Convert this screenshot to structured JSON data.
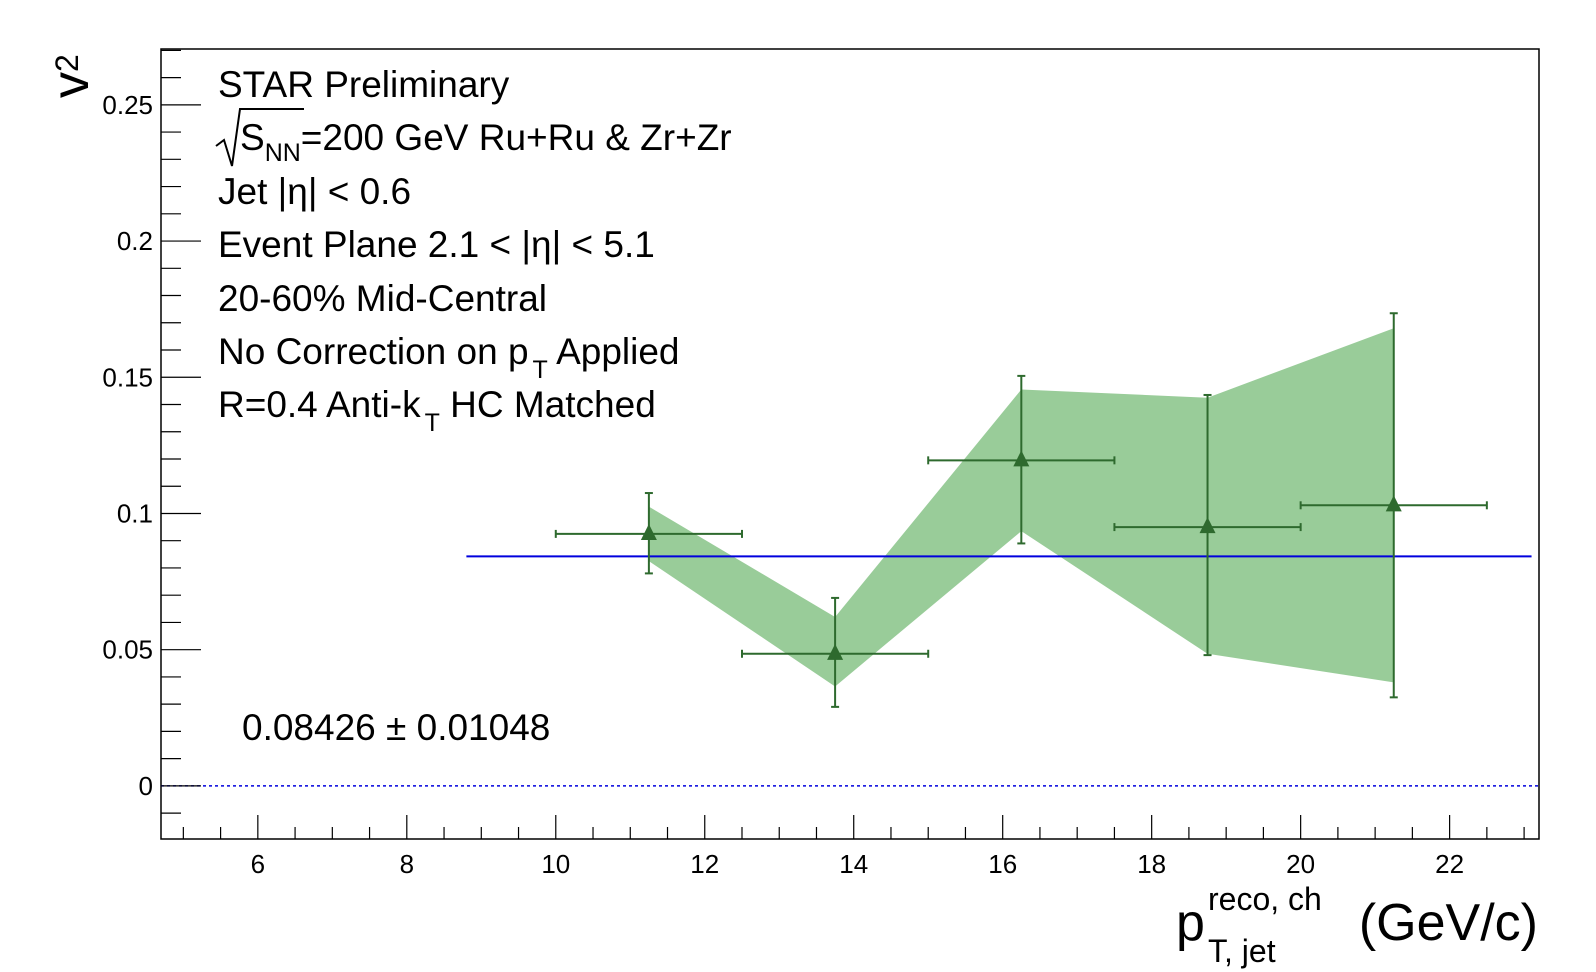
{
  "chart_data": {
    "type": "scatter",
    "xlabel": {
      "main": "p",
      "superscript": "reco, ch",
      "subscript": "T, jet",
      "unit": "(GeV/c)"
    },
    "ylabel": {
      "main": "v",
      "subscript": "2"
    },
    "xlim": [
      4.7,
      23.2
    ],
    "ylim": [
      -0.0195,
      0.2705
    ],
    "xticks": [
      6,
      8,
      10,
      12,
      14,
      16,
      18,
      20,
      22
    ],
    "xtick_labels": [
      "6",
      "8",
      "10",
      "12",
      "14",
      "16",
      "18",
      "20",
      "22"
    ],
    "xminor_step": 0.5,
    "yticks": [
      0,
      0.05,
      0.1,
      0.15,
      0.2,
      0.25
    ],
    "ytick_labels": [
      "0",
      "0.05",
      "0.1",
      "0.15",
      "0.2",
      "0.25"
    ],
    "yminor_step": 0.01,
    "grid": false,
    "legend": "none",
    "annotations": {
      "experiment": "STAR Preliminary",
      "energy_main": "S",
      "energy_sub": "NN",
      "energy_rest": "=200 GeV Ru+Ru & Zr+Zr",
      "jet_eta": "Jet |η| < 0.6",
      "event_plane": "Event Plane 2.1 < |η| < 5.1",
      "centrality": "20-60% Mid-Central",
      "correction_a": "No Correction on p",
      "correction_sub": "T",
      "correction_b": " Applied",
      "jet_def_a": "R=0.4 Anti-k",
      "jet_def_sub": "T",
      "jet_def_b": " HC Matched",
      "fit_result": "0.08426 ± 0.01048"
    },
    "series": [
      {
        "type": "points",
        "marker": "triangle",
        "color": "#2e6a2e",
        "points": [
          {
            "x": 11.25,
            "xerr": 1.25,
            "y": 0.0925,
            "yerr_low": 0.0145,
            "yerr_high": 0.015
          },
          {
            "x": 13.75,
            "xerr": 1.25,
            "y": 0.0485,
            "yerr_low": 0.0195,
            "yerr_high": 0.0205
          },
          {
            "x": 16.25,
            "xerr": 1.25,
            "y": 0.1195,
            "yerr_low": 0.0305,
            "yerr_high": 0.031
          },
          {
            "x": 18.75,
            "xerr": 1.25,
            "y": 0.095,
            "yerr_low": 0.047,
            "yerr_high": 0.0485
          },
          {
            "x": 21.25,
            "xerr": 1.25,
            "y": 0.103,
            "yerr_low": 0.0705,
            "yerr_high": 0.0705
          }
        ]
      },
      {
        "type": "band",
        "color": "#99cc99",
        "points": [
          {
            "x": 11.25,
            "low": 0.0825,
            "high": 0.1025
          },
          {
            "x": 13.75,
            "low": 0.0365,
            "high": 0.062
          },
          {
            "x": 16.25,
            "low": 0.0935,
            "high": 0.1455
          },
          {
            "x": 18.75,
            "low": 0.0485,
            "high": 0.1425
          },
          {
            "x": 21.25,
            "low": 0.038,
            "high": 0.168
          }
        ]
      },
      {
        "type": "hline",
        "color": "#0000dd",
        "y": 0.08426,
        "x_from": 8.8,
        "x_to": 23.1
      },
      {
        "type": "hline",
        "color": "#0000dd",
        "style": "dotted",
        "y": 0,
        "x_from": 4.7,
        "x_to": 23.2
      }
    ]
  }
}
